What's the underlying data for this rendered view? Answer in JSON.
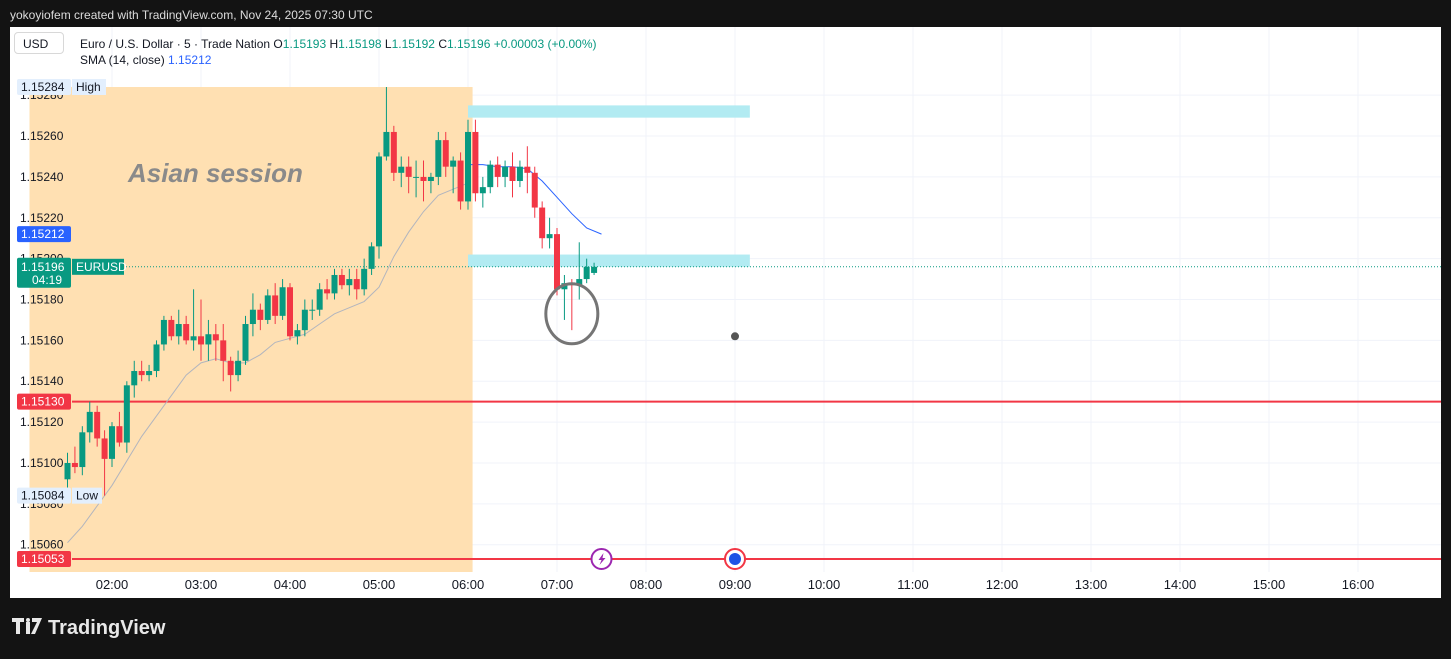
{
  "header": {
    "attribution": "yokoyiofem created with TradingView.com, Nov 24, 2025 07:30 UTC"
  },
  "toolbar": {
    "currency": "USD"
  },
  "legend": {
    "symbol": "Euro / U.S. Dollar · 5 · Trade Nation",
    "o_label": "O",
    "o_value": "1.15193",
    "h_label": "H",
    "h_value": "1.15198",
    "l_label": "L",
    "l_value": "1.15192",
    "c_label": "C",
    "c_value": "1.15196",
    "change": "+0.00003 (+0.00%)",
    "sma_label": "SMA (14, close)",
    "sma_value": "1.15212"
  },
  "annotations": {
    "session_label": "Asian session"
  },
  "footer": {
    "brand": "TradingView"
  },
  "colors": {
    "up": "#089981",
    "down": "#f23645",
    "sma": "#2962ff",
    "sma_old": "#b2b5be",
    "session": "#ffe0b2",
    "zone": "#b2ebf2",
    "level": "#f23645"
  },
  "chart_data": {
    "type": "candlestick",
    "symbol": "EURUSD",
    "timeframe": "5",
    "x_ticks": [
      "02:00",
      "03:00",
      "04:00",
      "05:00",
      "06:00",
      "07:00",
      "08:00",
      "09:00",
      "10:00",
      "11:00",
      "12:00",
      "13:00",
      "14:00",
      "15:00",
      "16:00"
    ],
    "y_ticks": [
      "1.15060",
      "1.15080",
      "1.15100",
      "1.15120",
      "1.15140",
      "1.15160",
      "1.15180",
      "1.15200",
      "1.15220",
      "1.15240",
      "1.15260",
      "1.15280"
    ],
    "ylim": [
      1.15045,
      1.15287
    ],
    "price_labels": {
      "high": {
        "value": "1.15284",
        "text": "High"
      },
      "low": {
        "value": "1.15084",
        "text": "Low"
      },
      "sma": {
        "value": "1.15212"
      },
      "current": {
        "value": "1.15196",
        "symbol": "EURUSD",
        "countdown": "04:19"
      },
      "level_upper": {
        "value": "1.15130"
      },
      "level_lower": {
        "value": "1.15053"
      }
    },
    "horizontal_levels": [
      1.1513,
      1.15053
    ],
    "session": {
      "start": "01:30",
      "end": "05:55"
    },
    "zones": [
      {
        "start": "06:00",
        "end": "09:10",
        "top": 1.15275,
        "bottom": 1.15269
      },
      {
        "start": "06:00",
        "end": "09:10",
        "top": 1.15202,
        "bottom": 1.15196
      }
    ],
    "candles": [
      {
        "t": "01:30",
        "o": 1.15092,
        "h": 1.15105,
        "l": 1.15088,
        "c": 1.151
      },
      {
        "t": "01:35",
        "o": 1.151,
        "h": 1.15108,
        "l": 1.15095,
        "c": 1.15098
      },
      {
        "t": "01:40",
        "o": 1.15098,
        "h": 1.15118,
        "l": 1.15094,
        "c": 1.15115
      },
      {
        "t": "01:45",
        "o": 1.15115,
        "h": 1.1513,
        "l": 1.1511,
        "c": 1.15125
      },
      {
        "t": "01:50",
        "o": 1.15125,
        "h": 1.15128,
        "l": 1.15108,
        "c": 1.15112
      },
      {
        "t": "01:55",
        "o": 1.15112,
        "h": 1.15116,
        "l": 1.15084,
        "c": 1.15102
      },
      {
        "t": "02:00",
        "o": 1.15102,
        "h": 1.1512,
        "l": 1.15098,
        "c": 1.15118
      },
      {
        "t": "02:05",
        "o": 1.15118,
        "h": 1.15125,
        "l": 1.15108,
        "c": 1.1511
      },
      {
        "t": "02:10",
        "o": 1.1511,
        "h": 1.1514,
        "l": 1.15105,
        "c": 1.15138
      },
      {
        "t": "02:15",
        "o": 1.15138,
        "h": 1.1515,
        "l": 1.15132,
        "c": 1.15145
      },
      {
        "t": "02:20",
        "o": 1.15145,
        "h": 1.1515,
        "l": 1.1514,
        "c": 1.15143
      },
      {
        "t": "02:25",
        "o": 1.15143,
        "h": 1.15148,
        "l": 1.1514,
        "c": 1.15145
      },
      {
        "t": "02:30",
        "o": 1.15145,
        "h": 1.1516,
        "l": 1.15142,
        "c": 1.15158
      },
      {
        "t": "02:35",
        "o": 1.15158,
        "h": 1.15172,
        "l": 1.15155,
        "c": 1.1517
      },
      {
        "t": "02:40",
        "o": 1.1517,
        "h": 1.15172,
        "l": 1.1516,
        "c": 1.15162
      },
      {
        "t": "02:45",
        "o": 1.15162,
        "h": 1.15175,
        "l": 1.15158,
        "c": 1.15168
      },
      {
        "t": "02:50",
        "o": 1.15168,
        "h": 1.15172,
        "l": 1.15158,
        "c": 1.1516
      },
      {
        "t": "02:55",
        "o": 1.1516,
        "h": 1.15185,
        "l": 1.15155,
        "c": 1.15162
      },
      {
        "t": "03:00",
        "o": 1.15162,
        "h": 1.1518,
        "l": 1.1515,
        "c": 1.15158
      },
      {
        "t": "03:05",
        "o": 1.15158,
        "h": 1.1517,
        "l": 1.1515,
        "c": 1.15163
      },
      {
        "t": "03:10",
        "o": 1.15163,
        "h": 1.15168,
        "l": 1.1515,
        "c": 1.1516
      },
      {
        "t": "03:15",
        "o": 1.1516,
        "h": 1.15168,
        "l": 1.1514,
        "c": 1.1515
      },
      {
        "t": "03:20",
        "o": 1.1515,
        "h": 1.15152,
        "l": 1.15135,
        "c": 1.15143
      },
      {
        "t": "03:25",
        "o": 1.15143,
        "h": 1.15155,
        "l": 1.1514,
        "c": 1.1515
      },
      {
        "t": "03:30",
        "o": 1.1515,
        "h": 1.15172,
        "l": 1.15148,
        "c": 1.15168
      },
      {
        "t": "03:35",
        "o": 1.15168,
        "h": 1.15183,
        "l": 1.15162,
        "c": 1.15175
      },
      {
        "t": "03:40",
        "o": 1.15175,
        "h": 1.15178,
        "l": 1.15165,
        "c": 1.1517
      },
      {
        "t": "03:45",
        "o": 1.1517,
        "h": 1.15185,
        "l": 1.15168,
        "c": 1.15182
      },
      {
        "t": "03:50",
        "o": 1.15182,
        "h": 1.15188,
        "l": 1.15168,
        "c": 1.15172
      },
      {
        "t": "03:55",
        "o": 1.15172,
        "h": 1.1519,
        "l": 1.1517,
        "c": 1.15186
      },
      {
        "t": "04:00",
        "o": 1.15186,
        "h": 1.15188,
        "l": 1.1516,
        "c": 1.15162
      },
      {
        "t": "04:05",
        "o": 1.15162,
        "h": 1.15168,
        "l": 1.15158,
        "c": 1.15165
      },
      {
        "t": "04:10",
        "o": 1.15165,
        "h": 1.1518,
        "l": 1.15162,
        "c": 1.15175
      },
      {
        "t": "04:15",
        "o": 1.15175,
        "h": 1.1518,
        "l": 1.1517,
        "c": 1.15175
      },
      {
        "t": "04:20",
        "o": 1.15175,
        "h": 1.15188,
        "l": 1.15172,
        "c": 1.15185
      },
      {
        "t": "04:25",
        "o": 1.15185,
        "h": 1.1519,
        "l": 1.1518,
        "c": 1.15183
      },
      {
        "t": "04:30",
        "o": 1.15183,
        "h": 1.15195,
        "l": 1.1518,
        "c": 1.15192
      },
      {
        "t": "04:35",
        "o": 1.15192,
        "h": 1.15195,
        "l": 1.15185,
        "c": 1.15187
      },
      {
        "t": "04:40",
        "o": 1.15187,
        "h": 1.15195,
        "l": 1.15182,
        "c": 1.1519
      },
      {
        "t": "04:45",
        "o": 1.1519,
        "h": 1.15195,
        "l": 1.1518,
        "c": 1.15185
      },
      {
        "t": "04:50",
        "o": 1.15185,
        "h": 1.152,
        "l": 1.15182,
        "c": 1.15195
      },
      {
        "t": "04:55",
        "o": 1.15195,
        "h": 1.15208,
        "l": 1.15192,
        "c": 1.15206
      },
      {
        "t": "05:00",
        "o": 1.15206,
        "h": 1.15252,
        "l": 1.152,
        "c": 1.1525
      },
      {
        "t": "05:05",
        "o": 1.1525,
        "h": 1.15284,
        "l": 1.15248,
        "c": 1.15262
      },
      {
        "t": "05:10",
        "o": 1.15262,
        "h": 1.15265,
        "l": 1.15238,
        "c": 1.15242
      },
      {
        "t": "05:15",
        "o": 1.15242,
        "h": 1.1525,
        "l": 1.15235,
        "c": 1.15245
      },
      {
        "t": "05:20",
        "o": 1.15245,
        "h": 1.1525,
        "l": 1.15232,
        "c": 1.1524
      },
      {
        "t": "05:25",
        "o": 1.1524,
        "h": 1.15248,
        "l": 1.1523,
        "c": 1.1524
      },
      {
        "t": "05:30",
        "o": 1.1524,
        "h": 1.15248,
        "l": 1.15228,
        "c": 1.15238
      },
      {
        "t": "05:35",
        "o": 1.15238,
        "h": 1.15242,
        "l": 1.15232,
        "c": 1.1524
      },
      {
        "t": "05:40",
        "o": 1.1524,
        "h": 1.15262,
        "l": 1.15236,
        "c": 1.15258
      },
      {
        "t": "05:45",
        "o": 1.15258,
        "h": 1.15262,
        "l": 1.1524,
        "c": 1.15245
      },
      {
        "t": "05:50",
        "o": 1.15245,
        "h": 1.1525,
        "l": 1.15232,
        "c": 1.15248
      },
      {
        "t": "05:55",
        "o": 1.15248,
        "h": 1.15252,
        "l": 1.15224,
        "c": 1.15228
      },
      {
        "t": "06:00",
        "o": 1.15228,
        "h": 1.15268,
        "l": 1.15224,
        "c": 1.15262
      },
      {
        "t": "06:05",
        "o": 1.15262,
        "h": 1.15268,
        "l": 1.15228,
        "c": 1.15232
      },
      {
        "t": "06:10",
        "o": 1.15232,
        "h": 1.1524,
        "l": 1.15225,
        "c": 1.15235
      },
      {
        "t": "06:15",
        "o": 1.15235,
        "h": 1.15248,
        "l": 1.15232,
        "c": 1.15246
      },
      {
        "t": "06:20",
        "o": 1.15246,
        "h": 1.1525,
        "l": 1.15235,
        "c": 1.1524
      },
      {
        "t": "06:25",
        "o": 1.1524,
        "h": 1.15248,
        "l": 1.15235,
        "c": 1.15245
      },
      {
        "t": "06:30",
        "o": 1.15245,
        "h": 1.15252,
        "l": 1.1523,
        "c": 1.15238
      },
      {
        "t": "06:35",
        "o": 1.15238,
        "h": 1.15248,
        "l": 1.15235,
        "c": 1.15245
      },
      {
        "t": "06:40",
        "o": 1.15245,
        "h": 1.15255,
        "l": 1.15232,
        "c": 1.15242
      },
      {
        "t": "06:45",
        "o": 1.15242,
        "h": 1.15245,
        "l": 1.1522,
        "c": 1.15225
      },
      {
        "t": "06:50",
        "o": 1.15225,
        "h": 1.15228,
        "l": 1.15205,
        "c": 1.1521
      },
      {
        "t": "06:55",
        "o": 1.1521,
        "h": 1.1522,
        "l": 1.15205,
        "c": 1.15212
      },
      {
        "t": "07:00",
        "o": 1.15212,
        "h": 1.15215,
        "l": 1.15182,
        "c": 1.15185
      },
      {
        "t": "07:05",
        "o": 1.15185,
        "h": 1.15192,
        "l": 1.1517,
        "c": 1.15188
      },
      {
        "t": "07:10",
        "o": 1.15188,
        "h": 1.1519,
        "l": 1.15165,
        "c": 1.15187
      },
      {
        "t": "07:15",
        "o": 1.15187,
        "h": 1.15208,
        "l": 1.1518,
        "c": 1.1519
      },
      {
        "t": "07:20",
        "o": 1.1519,
        "h": 1.152,
        "l": 1.15188,
        "c": 1.15196
      },
      {
        "t": "07:25",
        "o": 1.15193,
        "h": 1.15198,
        "l": 1.15192,
        "c": 1.15196
      }
    ],
    "sma": [
      {
        "t": "01:30",
        "v": 1.1507
      },
      {
        "t": "01:40",
        "v": 1.15078
      },
      {
        "t": "01:50",
        "v": 1.15088
      },
      {
        "t": "02:00",
        "v": 1.15098
      },
      {
        "t": "02:10",
        "v": 1.1511
      },
      {
        "t": "02:20",
        "v": 1.15122
      },
      {
        "t": "02:30",
        "v": 1.15132
      },
      {
        "t": "02:40",
        "v": 1.15142
      },
      {
        "t": "02:50",
        "v": 1.15152
      },
      {
        "t": "03:00",
        "v": 1.15158
      },
      {
        "t": "03:10",
        "v": 1.1516
      },
      {
        "t": "03:20",
        "v": 1.15158
      },
      {
        "t": "03:30",
        "v": 1.15158
      },
      {
        "t": "03:40",
        "v": 1.15162
      },
      {
        "t": "03:50",
        "v": 1.15168
      },
      {
        "t": "04:00",
        "v": 1.1517
      },
      {
        "t": "04:10",
        "v": 1.15172
      },
      {
        "t": "04:20",
        "v": 1.15177
      },
      {
        "t": "04:30",
        "v": 1.15182
      },
      {
        "t": "04:40",
        "v": 1.15185
      },
      {
        "t": "04:50",
        "v": 1.15188
      },
      {
        "t": "05:00",
        "v": 1.15195
      },
      {
        "t": "05:10",
        "v": 1.1521
      },
      {
        "t": "05:20",
        "v": 1.15222
      },
      {
        "t": "05:30",
        "v": 1.15232
      },
      {
        "t": "05:40",
        "v": 1.1524
      },
      {
        "t": "05:50",
        "v": 1.15243
      },
      {
        "t": "06:00",
        "v": 1.15246
      },
      {
        "t": "06:10",
        "v": 1.15246
      },
      {
        "t": "06:20",
        "v": 1.15245
      },
      {
        "t": "06:30",
        "v": 1.15245
      },
      {
        "t": "06:40",
        "v": 1.15244
      },
      {
        "t": "06:50",
        "v": 1.15238
      },
      {
        "t": "07:00",
        "v": 1.1523
      },
      {
        "t": "07:10",
        "v": 1.15222
      },
      {
        "t": "07:20",
        "v": 1.15215
      },
      {
        "t": "07:30",
        "v": 1.15212
      }
    ],
    "markers": [
      {
        "type": "ellipse",
        "t": "07:10",
        "v": 1.15173
      },
      {
        "type": "dot",
        "t": "09:00",
        "v": 1.15162
      },
      {
        "type": "event",
        "icon": "lightning-event-icon",
        "t": "07:30",
        "v": 1.15053
      },
      {
        "type": "event",
        "icon": "flag-event-icon",
        "t": "09:00",
        "v": 1.15053
      }
    ]
  }
}
